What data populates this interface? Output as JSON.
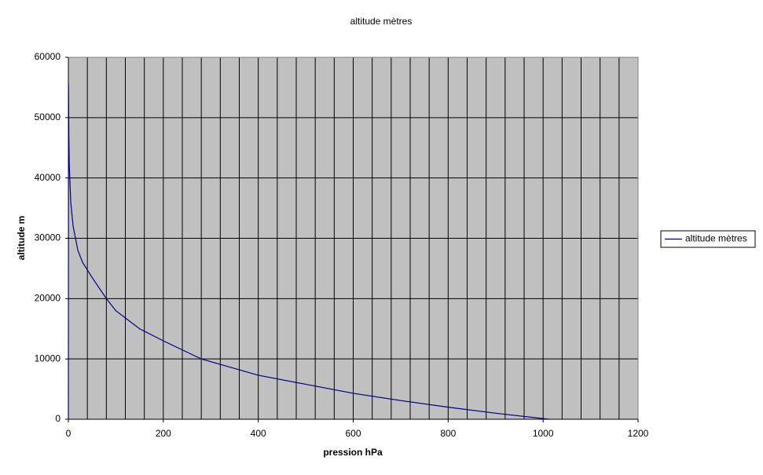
{
  "chart_data": {
    "type": "line",
    "title": "altitude mètres",
    "x_label": "pression hPa",
    "y_label": "altitude m",
    "x": [
      0,
      0.3,
      1,
      2,
      5,
      10,
      20,
      30,
      50,
      80,
      100,
      150,
      200,
      280,
      400,
      500,
      600,
      700,
      800,
      900,
      1013
    ],
    "series": [
      {
        "name": "altitude mètres",
        "color": "#000080",
        "values": [
          0,
          55600,
          47000,
          42000,
          36000,
          32000,
          28000,
          26000,
          23500,
          20000,
          18000,
          15000,
          13000,
          10000,
          7300,
          5800,
          4300,
          3100,
          2000,
          1000,
          0
        ]
      }
    ],
    "xlim": [
      0,
      1200
    ],
    "xticks": [
      0,
      200,
      400,
      600,
      800,
      1000,
      1200
    ],
    "xminorticks": [
      0,
      40,
      80,
      120,
      160,
      200,
      240,
      280,
      320,
      360,
      400,
      440,
      480,
      520,
      560,
      600,
      640,
      680,
      720,
      760,
      800,
      840,
      880,
      920,
      960,
      1000,
      1040,
      1080,
      1120,
      1160,
      1200
    ],
    "ylim": [
      0,
      60000
    ],
    "yticks": [
      0,
      10000,
      20000,
      30000,
      40000,
      50000,
      60000
    ],
    "grid": true,
    "legend": "right"
  }
}
